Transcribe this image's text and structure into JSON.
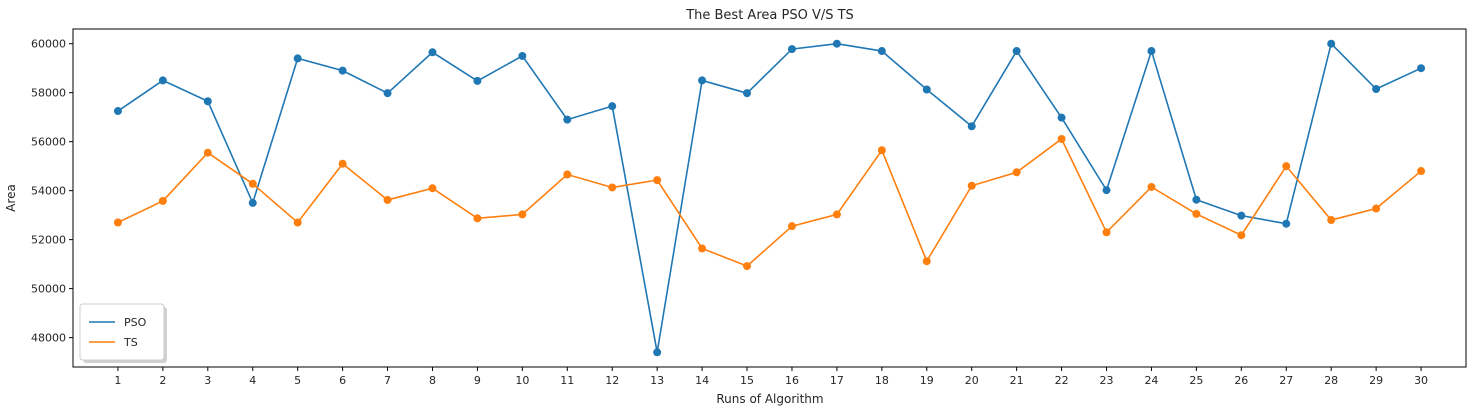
{
  "chart_data": {
    "type": "line",
    "title": "The Best Area PSO V/S TS",
    "xlabel": "Runs of Algorithm",
    "ylabel": "Area",
    "x": [
      1,
      2,
      3,
      4,
      5,
      6,
      7,
      8,
      9,
      10,
      11,
      12,
      13,
      14,
      15,
      16,
      17,
      18,
      19,
      20,
      21,
      22,
      23,
      24,
      25,
      26,
      27,
      28,
      29,
      30
    ],
    "xlim": [
      0,
      31
    ],
    "ylim": [
      46800,
      60600
    ],
    "yticks": [
      48000,
      50000,
      52000,
      54000,
      56000,
      58000,
      60000
    ],
    "grid": false,
    "legend_position": "lower-left",
    "series": [
      {
        "name": "PSO",
        "color": "#1f77b4",
        "values": [
          57250,
          58500,
          57650,
          53500,
          59400,
          58900,
          57980,
          59650,
          58480,
          59500,
          56900,
          57450,
          47400,
          58500,
          57980,
          59780,
          60000,
          59700,
          58130,
          56630,
          59700,
          56980,
          54020,
          59700,
          53630,
          52980,
          52650,
          60000,
          58150,
          59000
        ]
      },
      {
        "name": "TS",
        "color": "#ff7f0e",
        "values": [
          52700,
          53580,
          55550,
          54280,
          52700,
          55100,
          53620,
          54100,
          52870,
          53030,
          54660,
          54130,
          54430,
          51640,
          50920,
          52550,
          53030,
          55650,
          51120,
          54200,
          54750,
          56110,
          52300,
          54150,
          53050,
          52180,
          55000,
          52800,
          53270,
          54800
        ]
      }
    ]
  }
}
